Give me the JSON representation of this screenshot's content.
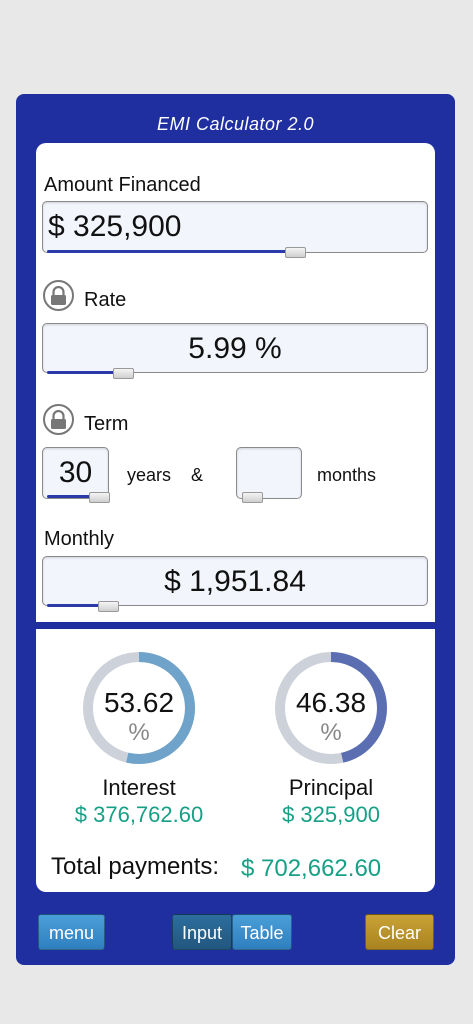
{
  "app": {
    "title": "EMI Calculator 2.0"
  },
  "amount": {
    "label": "Amount Financed",
    "value": "$ 325,900",
    "slider_level": 0.66
  },
  "rate": {
    "label": "Rate",
    "value": "5.99 %",
    "slider_level": 0.2
  },
  "term": {
    "label": "Term",
    "years_value": "30",
    "years_label": "years",
    "ampersand": "&",
    "months_value": "",
    "months_label": "months",
    "years_slider_level": 0.85,
    "months_slider_level": 0.0
  },
  "monthly": {
    "label": "Monthly",
    "value": "$ 1,951.84",
    "slider_level": 0.18
  },
  "results": {
    "interest": {
      "percent": "53.62",
      "percent_sign": "%",
      "label": "Interest",
      "amount": "$ 376,762.60",
      "color": "#6fa3c9"
    },
    "principal": {
      "percent": "46.38",
      "percent_sign": "%",
      "label": "Principal",
      "amount": "$ 325,900",
      "color": "#5b6eb2"
    },
    "total_label": "Total payments:",
    "total_value": "$ 702,662.60"
  },
  "toolbar": {
    "menu": "menu",
    "input": "Input",
    "table": "Table",
    "clear": "Clear"
  },
  "icons": {
    "lock": "lock-icon"
  }
}
